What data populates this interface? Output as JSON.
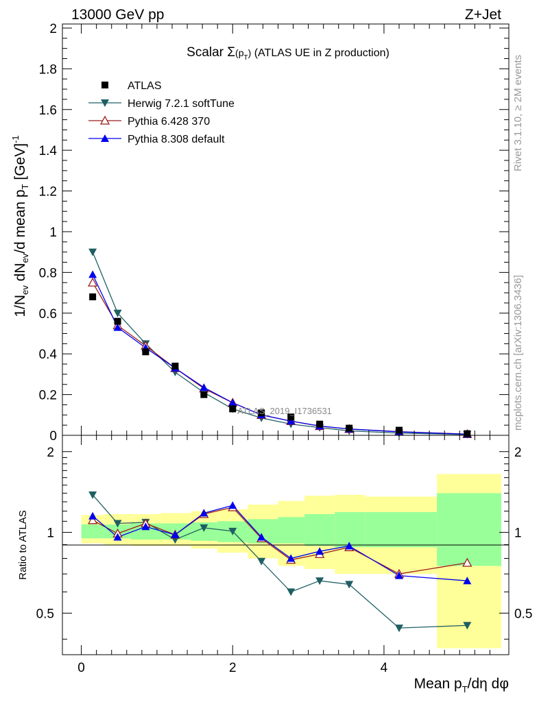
{
  "header": {
    "left": "13000 GeV pp",
    "right": "Z+Jet"
  },
  "side": {
    "rivet": "Rivet 3.1.10, ≥ 2M events",
    "mcplots": "mcplots.cern.ch [arXiv:1306.3436]"
  },
  "colors": {
    "atlas": "#000000",
    "herwig": "#1f5f63",
    "pythia6": "#9b1b1b",
    "pythia8": "#0000ee",
    "band_inner": "#99ff99",
    "band_outer": "#ffff99"
  },
  "chart_data": [
    {
      "type": "scatter",
      "panel": "main",
      "title": "Scalar Σ(pT) (ATLAS UE in Z production)",
      "title_parts": {
        "pre": "Scalar ",
        "sigma": "Σ",
        "p": "(p",
        "T": "T",
        "close": ")",
        "rest": " (ATLAS UE in Z production)"
      },
      "xlabel": "Mean pT/dη dφ",
      "ylabel": "1/Nev dNev/d mean pT [GeV]-1",
      "xlim": [
        -0.25,
        5.65
      ],
      "ylim": [
        0,
        2.02
      ],
      "yticks": [
        "0",
        "0.2",
        "0.4",
        "0.6",
        "0.8",
        "1",
        "1.2",
        "1.4",
        "1.6",
        "1.8",
        "2"
      ],
      "ytick_values": [
        0,
        0.2,
        0.4,
        0.6,
        0.8,
        1,
        1.2,
        1.4,
        1.6,
        1.8,
        2
      ],
      "watermark": "ATLAS_2019_I1736531",
      "legend_position": "top-left",
      "x": [
        0.15,
        0.48,
        0.85,
        1.24,
        1.62,
        2.0,
        2.38,
        2.77,
        3.15,
        3.54,
        4.2,
        5.1
      ],
      "series": [
        {
          "name": "ATLAS",
          "marker": "square",
          "values": [
            0.68,
            0.56,
            0.41,
            0.34,
            0.2,
            0.13,
            0.11,
            0.09,
            0.055,
            0.035,
            0.025,
            0.008
          ]
        },
        {
          "name": "Herwig 7.2.1 softTune",
          "marker": "triangle-down",
          "values": [
            0.9,
            0.6,
            0.45,
            0.31,
            0.21,
            0.13,
            0.085,
            0.055,
            0.038,
            0.022,
            0.011,
            0.004
          ]
        },
        {
          "name": "Pythia 6.428 370",
          "marker": "triangle-up-open",
          "values": [
            0.75,
            0.54,
            0.44,
            0.33,
            0.23,
            0.16,
            0.1,
            0.07,
            0.045,
            0.031,
            0.018,
            0.006
          ]
        },
        {
          "name": "Pythia 8.308 default",
          "marker": "triangle-up",
          "values": [
            0.79,
            0.53,
            0.43,
            0.33,
            0.235,
            0.16,
            0.1,
            0.07,
            0.046,
            0.031,
            0.017,
            0.0055
          ]
        }
      ]
    },
    {
      "type": "scatter",
      "panel": "ratio",
      "ylabel": "Ratio to ATLAS",
      "xlabel": "Mean pT/dη dφ",
      "xlim": [
        -0.25,
        5.65
      ],
      "ylim": [
        0.35,
        2.3
      ],
      "ylog": true,
      "yticks": [
        "0.5",
        "1",
        "2"
      ],
      "ytick_values": [
        0.5,
        1,
        2
      ],
      "xticks": [
        "0",
        "2",
        "4"
      ],
      "xtick_values": [
        0,
        2,
        4
      ],
      "x": [
        0.15,
        0.48,
        0.85,
        1.24,
        1.62,
        2.0,
        2.38,
        2.77,
        3.15,
        3.54,
        4.2,
        5.1
      ],
      "bands": {
        "bin_edges": [
          0.0,
          0.3,
          0.65,
          1.05,
          1.45,
          1.8,
          2.2,
          2.6,
          2.95,
          3.35,
          3.75,
          4.7,
          5.55
        ],
        "inner_low": [
          0.95,
          0.95,
          0.94,
          0.94,
          0.93,
          0.92,
          0.91,
          0.91,
          0.89,
          0.88,
          0.88,
          0.75
        ],
        "inner_high": [
          1.07,
          1.07,
          1.08,
          1.08,
          1.09,
          1.1,
          1.12,
          1.14,
          1.17,
          1.19,
          1.19,
          1.4
        ],
        "outer_low": [
          0.91,
          0.9,
          0.89,
          0.89,
          0.87,
          0.84,
          0.8,
          0.75,
          0.73,
          0.7,
          0.7,
          0.37
        ],
        "outer_high": [
          1.16,
          1.17,
          1.17,
          1.18,
          1.2,
          1.22,
          1.27,
          1.31,
          1.37,
          1.38,
          1.36,
          1.65
        ]
      },
      "series": [
        {
          "name": "Herwig 7.2.1 softTune",
          "marker": "triangle-down",
          "values": [
            1.38,
            1.08,
            1.09,
            0.94,
            1.04,
            1.01,
            0.78,
            0.6,
            0.66,
            0.64,
            0.44,
            0.45
          ]
        },
        {
          "name": "Pythia 6.428 370",
          "marker": "triangle-up-open",
          "values": [
            1.11,
            0.99,
            1.08,
            0.98,
            1.17,
            1.24,
            0.95,
            0.79,
            0.83,
            0.88,
            0.7,
            0.77
          ]
        },
        {
          "name": "Pythia 8.308 default",
          "marker": "triangle-up",
          "values": [
            1.15,
            0.96,
            1.05,
            0.98,
            1.18,
            1.26,
            0.96,
            0.8,
            0.85,
            0.89,
            0.69,
            0.66
          ]
        }
      ]
    }
  ]
}
